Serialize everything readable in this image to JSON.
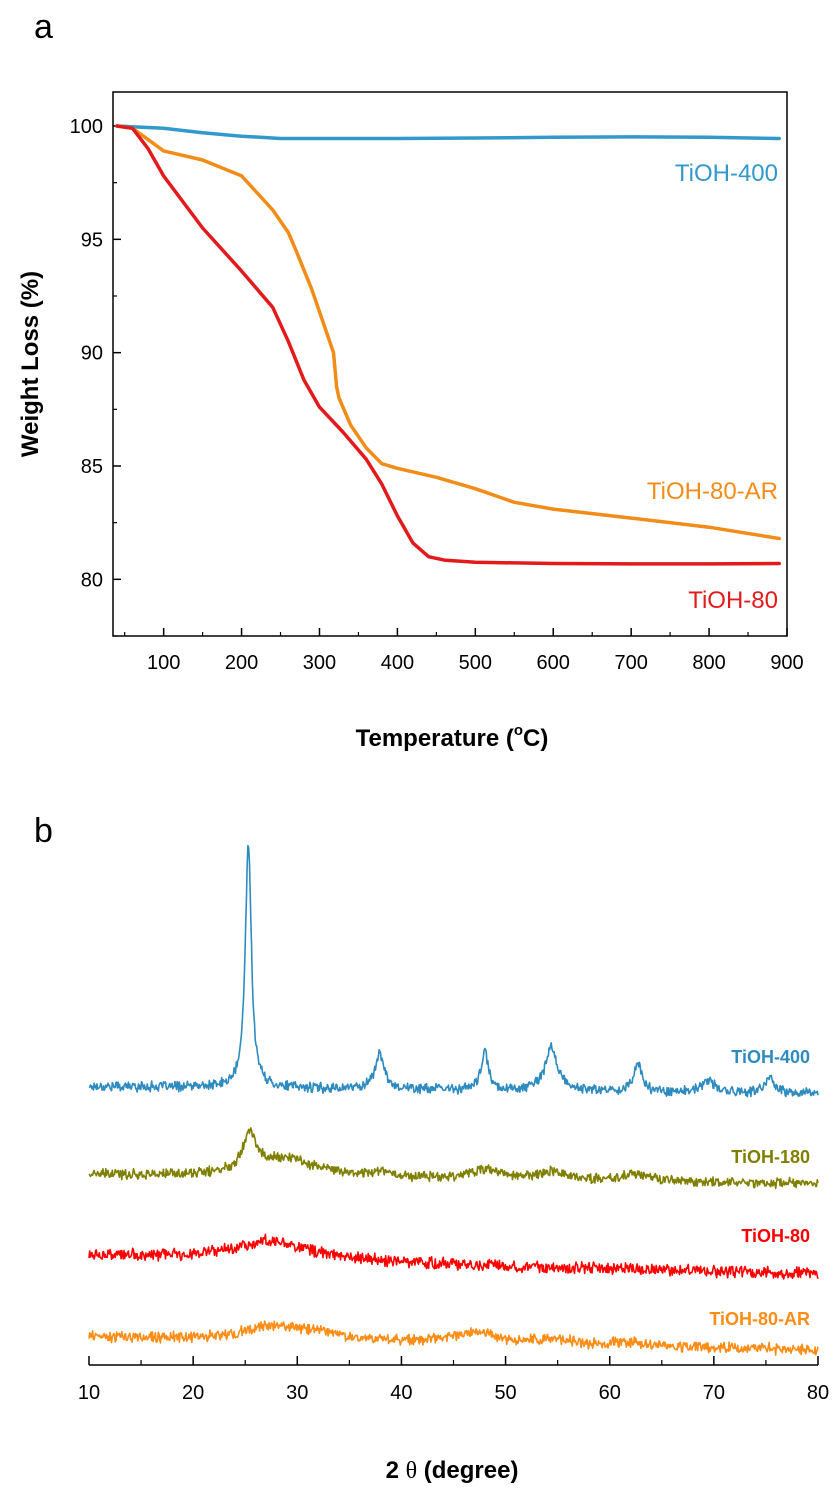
{
  "chart_data": [
    {
      "panel": "a",
      "type": "line",
      "xlabel_main": "Temperature (",
      "xlabel_sup": "o",
      "xlabel_tail": "C)",
      "ylabel": "Weight Loss (%)",
      "xlim": [
        35,
        900
      ],
      "ylim": [
        77.5,
        101.5
      ],
      "xticks": [
        100,
        200,
        300,
        400,
        500,
        600,
        700,
        800,
        900
      ],
      "yticks": [
        80,
        85,
        90,
        95,
        100
      ],
      "series": [
        {
          "name": "TiOH-400",
          "color": "#3399CC",
          "points": [
            [
              40,
              100
            ],
            [
              100,
              99.9
            ],
            [
              150,
              99.7
            ],
            [
              200,
              99.55
            ],
            [
              250,
              99.45
            ],
            [
              300,
              99.45
            ],
            [
              400,
              99.45
            ],
            [
              500,
              99.47
            ],
            [
              600,
              99.5
            ],
            [
              700,
              99.52
            ],
            [
              800,
              99.5
            ],
            [
              890,
              99.45
            ]
          ]
        },
        {
          "name": "TiOH-80-AR",
          "color": "#F28C18",
          "points": [
            [
              40,
              100
            ],
            [
              60,
              99.9
            ],
            [
              80,
              99.4
            ],
            [
              100,
              98.9
            ],
            [
              150,
              98.5
            ],
            [
              200,
              97.8
            ],
            [
              240,
              96.3
            ],
            [
              260,
              95.3
            ],
            [
              270,
              94.5
            ],
            [
              290,
              92.8
            ],
            [
              310,
              90.8
            ],
            [
              318,
              90.0
            ],
            [
              322,
              88.5
            ],
            [
              325,
              88.0
            ],
            [
              340,
              86.8
            ],
            [
              360,
              85.8
            ],
            [
              380,
              85.1
            ],
            [
              400,
              84.9
            ],
            [
              450,
              84.5
            ],
            [
              500,
              84.0
            ],
            [
              550,
              83.4
            ],
            [
              600,
              83.1
            ],
            [
              700,
              82.7
            ],
            [
              800,
              82.3
            ],
            [
              890,
              81.8
            ]
          ]
        },
        {
          "name": "TiOH-80",
          "color": "#E31A1C",
          "points": [
            [
              40,
              100
            ],
            [
              60,
              99.9
            ],
            [
              80,
              99.0
            ],
            [
              100,
              97.8
            ],
            [
              150,
              95.5
            ],
            [
              200,
              93.6
            ],
            [
              240,
              92.0
            ],
            [
              260,
              90.5
            ],
            [
              280,
              88.8
            ],
            [
              300,
              87.6
            ],
            [
              330,
              86.5
            ],
            [
              360,
              85.3
            ],
            [
              380,
              84.2
            ],
            [
              400,
              82.8
            ],
            [
              420,
              81.6
            ],
            [
              440,
              81.0
            ],
            [
              460,
              80.85
            ],
            [
              500,
              80.75
            ],
            [
              600,
              80.7
            ],
            [
              700,
              80.68
            ],
            [
              800,
              80.68
            ],
            [
              890,
              80.7
            ]
          ]
        }
      ]
    },
    {
      "panel": "b",
      "type": "line",
      "xlabel_prefix": "2 ",
      "xlabel_theta": "θ",
      "xlabel_unit": "(degree)",
      "ylabel": "",
      "xlim": [
        10,
        80
      ],
      "xticks": [
        10,
        20,
        30,
        40,
        50,
        60,
        70,
        80
      ],
      "series": [
        {
          "name": "TiOH-400",
          "color": "#2E8BC0",
          "baseline": [
            0.3,
            0.1
          ],
          "noise": 0.11,
          "peaks": [
            [
              25.3,
              6.8,
              0.35
            ],
            [
              37.9,
              0.95,
              0.55
            ],
            [
              48.0,
              1.05,
              0.4
            ],
            [
              54.4,
              1.2,
              0.7
            ],
            [
              62.7,
              0.8,
              0.45
            ],
            [
              69.5,
              0.35,
              0.6
            ],
            [
              75.4,
              0.45,
              0.45
            ]
          ]
        },
        {
          "name": "TiOH-180",
          "color": "#808000",
          "baseline": [
            0.2,
            -0.05
          ],
          "noise": 0.11,
          "peaks": [
            [
              25.4,
              1.05,
              0.8
            ],
            [
              29.0,
              0.5,
              3.5
            ],
            [
              38.0,
              0.15,
              1.2
            ],
            [
              48.0,
              0.25,
              2.0
            ],
            [
              54.5,
              0.25,
              1.4
            ],
            [
              62.5,
              0.2,
              1.5
            ]
          ]
        },
        {
          "name": "TiOH-80",
          "color": "#FF0000",
          "baseline": [
            0.25,
            -0.25
          ],
          "noise": 0.13,
          "peaks": [
            [
              27.5,
              0.55,
              4.5
            ]
          ]
        },
        {
          "name": "TiOH-80-AR",
          "color": "#FF8C14",
          "baseline": [
            0.3,
            -0.05
          ],
          "noise": 0.12,
          "peaks": [
            [
              27.5,
              0.35,
              3.0
            ],
            [
              32.0,
              0.2,
              3.0
            ],
            [
              47.0,
              0.3,
              2.5
            ],
            [
              54.5,
              0.15,
              2.0
            ],
            [
              62.0,
              0.1,
              2.0
            ]
          ]
        }
      ]
    }
  ]
}
